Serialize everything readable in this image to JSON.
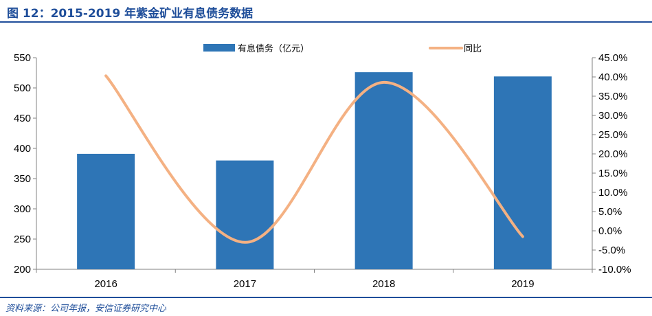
{
  "title": "图 12：2015-2019 年紫金矿业有息债务数据",
  "source": "资料来源：公司年报，安信证券研究中心",
  "colors": {
    "bar": "#2e75b6",
    "line": "#f4b183",
    "accent": "#1f4e9a"
  },
  "chart_data": {
    "type": "bar",
    "categories": [
      "2016",
      "2017",
      "2018",
      "2019"
    ],
    "series": [
      {
        "name": "有息债务（亿元）",
        "type": "bar",
        "axis": "left",
        "values": [
          391,
          380,
          526,
          519
        ]
      },
      {
        "name": "同比",
        "type": "line",
        "axis": "right",
        "values": [
          40.3,
          -3.0,
          38.6,
          -1.5
        ]
      }
    ],
    "y_left": {
      "lim": [
        200,
        550
      ],
      "ticks": [
        "200",
        "250",
        "300",
        "350",
        "400",
        "450",
        "500",
        "550"
      ]
    },
    "y_right": {
      "lim": [
        -10,
        45
      ],
      "ticks": [
        "-10.0%",
        "-5.0%",
        "0.0%",
        "5.0%",
        "10.0%",
        "15.0%",
        "20.0%",
        "25.0%",
        "30.0%",
        "35.0%",
        "40.0%",
        "45.0%"
      ]
    },
    "legend_position": "top",
    "grid": false
  }
}
